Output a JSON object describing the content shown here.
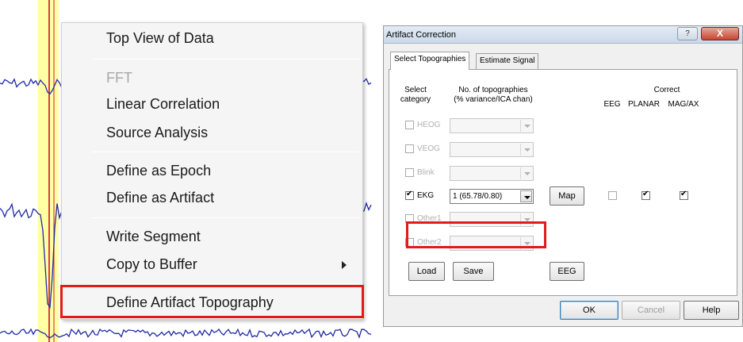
{
  "context_menu": {
    "items": [
      {
        "label": "Top View of Data",
        "enabled": true
      },
      {
        "label": "FFT",
        "enabled": false
      },
      {
        "label": "Linear Correlation",
        "enabled": true
      },
      {
        "label": "Source Analysis",
        "enabled": true
      },
      {
        "label": "Define as Epoch",
        "enabled": true
      },
      {
        "label": "Define as Artifact",
        "enabled": true
      },
      {
        "label": "Write Segment",
        "enabled": true
      },
      {
        "label": "Copy to Buffer",
        "enabled": true,
        "submenu": true
      },
      {
        "label": "Define Artifact Topography",
        "enabled": true,
        "highlighted": true
      }
    ]
  },
  "dialog": {
    "title": "Artifact Correction",
    "title_help": "?",
    "close": "X",
    "tabs": [
      {
        "label": "Select Topographies",
        "active": true
      },
      {
        "label": "Estimate Signal",
        "active": false
      }
    ],
    "headers": {
      "select_line1": "Select",
      "select_line2": "category",
      "num_line1": "No. of topographies",
      "num_line2": "(% variance/ICA chan)",
      "correct": "Correct",
      "eeg": "EEG",
      "planar": "PLANAR",
      "mag": "MAG/AX"
    },
    "rows": [
      {
        "label": "HEOG",
        "checked": false,
        "enabled": false,
        "value": ""
      },
      {
        "label": "VEOG",
        "checked": false,
        "enabled": false,
        "value": ""
      },
      {
        "label": "Blink",
        "checked": false,
        "enabled": false,
        "value": ""
      },
      {
        "label": "EKG",
        "checked": true,
        "enabled": true,
        "value": "1 (65.78/0.80)"
      },
      {
        "label": "Other1",
        "checked": false,
        "enabled": false,
        "value": ""
      },
      {
        "label": "Other2",
        "checked": false,
        "enabled": false,
        "value": ""
      }
    ],
    "map_button": "Map",
    "correct_checks": {
      "eeg": false,
      "planar": true,
      "mag": true
    },
    "buttons": {
      "load": "Load",
      "save": "Save",
      "eeg": "EEG",
      "ok": "OK",
      "cancel": "Cancel",
      "help": "Help"
    }
  }
}
